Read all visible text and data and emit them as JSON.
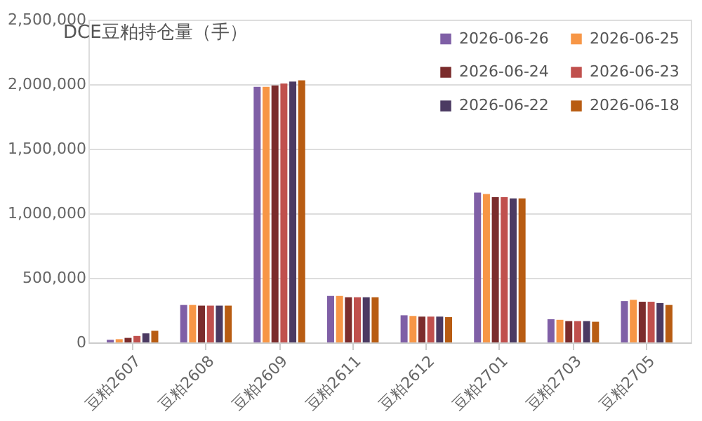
{
  "chart_data": {
    "type": "bar",
    "title": "DCE豆粕持仓量（手）",
    "categories": [
      "豆粕2607",
      "豆粕2608",
      "豆粕2609",
      "豆粕2611",
      "豆粕2612",
      "豆粕2701",
      "豆粕2703",
      "豆粕2705"
    ],
    "series": [
      {
        "name": "2026-06-26",
        "color": "#7f5fa6",
        "values": [
          20000,
          290000,
          1980000,
          360000,
          210000,
          1160000,
          180000,
          320000
        ]
      },
      {
        "name": "2026-06-25",
        "color": "#f79646",
        "values": [
          25000,
          290000,
          1980000,
          360000,
          205000,
          1150000,
          175000,
          330000
        ]
      },
      {
        "name": "2026-06-24",
        "color": "#7b2c2c",
        "values": [
          35000,
          285000,
          1990000,
          350000,
          200000,
          1125000,
          165000,
          315000
        ]
      },
      {
        "name": "2026-06-23",
        "color": "#c0504d",
        "values": [
          50000,
          285000,
          2005000,
          350000,
          200000,
          1125000,
          165000,
          315000
        ]
      },
      {
        "name": "2026-06-22",
        "color": "#4b3a62",
        "values": [
          70000,
          285000,
          2020000,
          350000,
          200000,
          1115000,
          165000,
          305000
        ]
      },
      {
        "name": "2026-06-18",
        "color": "#b85c12",
        "values": [
          90000,
          285000,
          2030000,
          350000,
          195000,
          1115000,
          160000,
          290000
        ]
      }
    ],
    "ylim": [
      0,
      2500000
    ],
    "yticks": [
      0,
      {
        "value": 500000,
        "label": "500,000"
      },
      {
        "value": 1000000,
        "label": "1,000,000"
      },
      {
        "value": 1500000,
        "label": "1,500,000"
      },
      {
        "value": 2000000,
        "label": "2,000,000"
      },
      {
        "value": 2500000,
        "label": "2,500,000"
      }
    ],
    "grid": "y",
    "legend": "top right"
  }
}
